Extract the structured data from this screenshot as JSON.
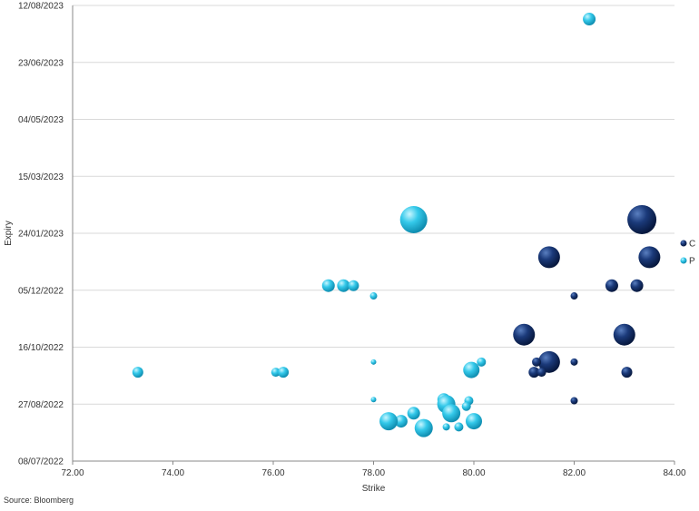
{
  "chart_data": {
    "type": "scatter",
    "variant": "bubble",
    "xlabel": "Strike",
    "ylabel": "Expiry",
    "xlim": [
      72,
      84
    ],
    "x_ticks": [
      "72.00",
      "74.00",
      "76.00",
      "78.00",
      "80.00",
      "82.00",
      "84.00"
    ],
    "y_ticks": [
      "08/07/2022",
      "27/08/2022",
      "16/10/2022",
      "05/12/2022",
      "24/01/2023",
      "15/03/2023",
      "04/05/2023",
      "23/06/2023",
      "12/08/2023"
    ],
    "ylim": [
      "2022-07-08",
      "2023-08-12"
    ],
    "grid": true,
    "legend_position": "right",
    "colors": {
      "C": "#0d2a63",
      "P": "#2ec4e6"
    },
    "series": [
      {
        "name": "C",
        "color": "#0d2a63",
        "points": [
          {
            "x": 83.35,
            "y": "2023-02-05",
            "size": 16
          },
          {
            "x": 83.5,
            "y": "2023-01-03",
            "size": 12
          },
          {
            "x": 81.5,
            "y": "2023-01-03",
            "size": 12
          },
          {
            "x": 82.75,
            "y": "2022-12-09",
            "size": 7
          },
          {
            "x": 83.25,
            "y": "2022-12-09",
            "size": 7
          },
          {
            "x": 82.0,
            "y": "2022-11-30",
            "size": 4
          },
          {
            "x": 81.0,
            "y": "2022-10-27",
            "size": 12
          },
          {
            "x": 83.0,
            "y": "2022-10-27",
            "size": 12
          },
          {
            "x": 81.5,
            "y": "2022-10-03",
            "size": 12
          },
          {
            "x": 81.25,
            "y": "2022-10-03",
            "size": 5
          },
          {
            "x": 82.0,
            "y": "2022-10-03",
            "size": 4
          },
          {
            "x": 81.2,
            "y": "2022-09-24",
            "size": 6
          },
          {
            "x": 81.35,
            "y": "2022-09-24",
            "size": 5
          },
          {
            "x": 83.05,
            "y": "2022-09-24",
            "size": 6
          },
          {
            "x": 82.0,
            "y": "2022-08-30",
            "size": 4
          }
        ]
      },
      {
        "name": "P",
        "color": "#2ec4e6",
        "points": [
          {
            "x": 82.3,
            "y": "2023-07-31",
            "size": 7
          },
          {
            "x": 78.8,
            "y": "2023-02-05",
            "size": 15
          },
          {
            "x": 77.1,
            "y": "2022-12-09",
            "size": 7
          },
          {
            "x": 77.4,
            "y": "2022-12-09",
            "size": 7
          },
          {
            "x": 77.6,
            "y": "2022-12-09",
            "size": 6
          },
          {
            "x": 78.0,
            "y": "2022-11-30",
            "size": 4
          },
          {
            "x": 78.0,
            "y": "2022-10-03",
            "size": 3
          },
          {
            "x": 80.15,
            "y": "2022-10-03",
            "size": 5
          },
          {
            "x": 79.95,
            "y": "2022-09-26",
            "size": 9
          },
          {
            "x": 73.3,
            "y": "2022-09-24",
            "size": 6
          },
          {
            "x": 76.05,
            "y": "2022-09-24",
            "size": 5
          },
          {
            "x": 76.2,
            "y": "2022-09-24",
            "size": 6
          },
          {
            "x": 78.0,
            "y": "2022-08-31",
            "size": 3
          },
          {
            "x": 79.4,
            "y": "2022-08-31",
            "size": 7
          },
          {
            "x": 79.9,
            "y": "2022-08-30",
            "size": 5
          },
          {
            "x": 79.45,
            "y": "2022-08-27",
            "size": 10
          },
          {
            "x": 79.85,
            "y": "2022-08-25",
            "size": 5
          },
          {
            "x": 79.55,
            "y": "2022-08-19",
            "size": 10
          },
          {
            "x": 78.8,
            "y": "2022-08-19",
            "size": 7
          },
          {
            "x": 78.55,
            "y": "2022-08-12",
            "size": 7
          },
          {
            "x": 78.3,
            "y": "2022-08-12",
            "size": 10
          },
          {
            "x": 80.0,
            "y": "2022-08-12",
            "size": 9
          },
          {
            "x": 79.0,
            "y": "2022-08-06",
            "size": 10
          },
          {
            "x": 79.45,
            "y": "2022-08-07",
            "size": 4
          },
          {
            "x": 79.7,
            "y": "2022-08-07",
            "size": 5
          }
        ]
      }
    ]
  },
  "source": "Source: Bloomberg"
}
